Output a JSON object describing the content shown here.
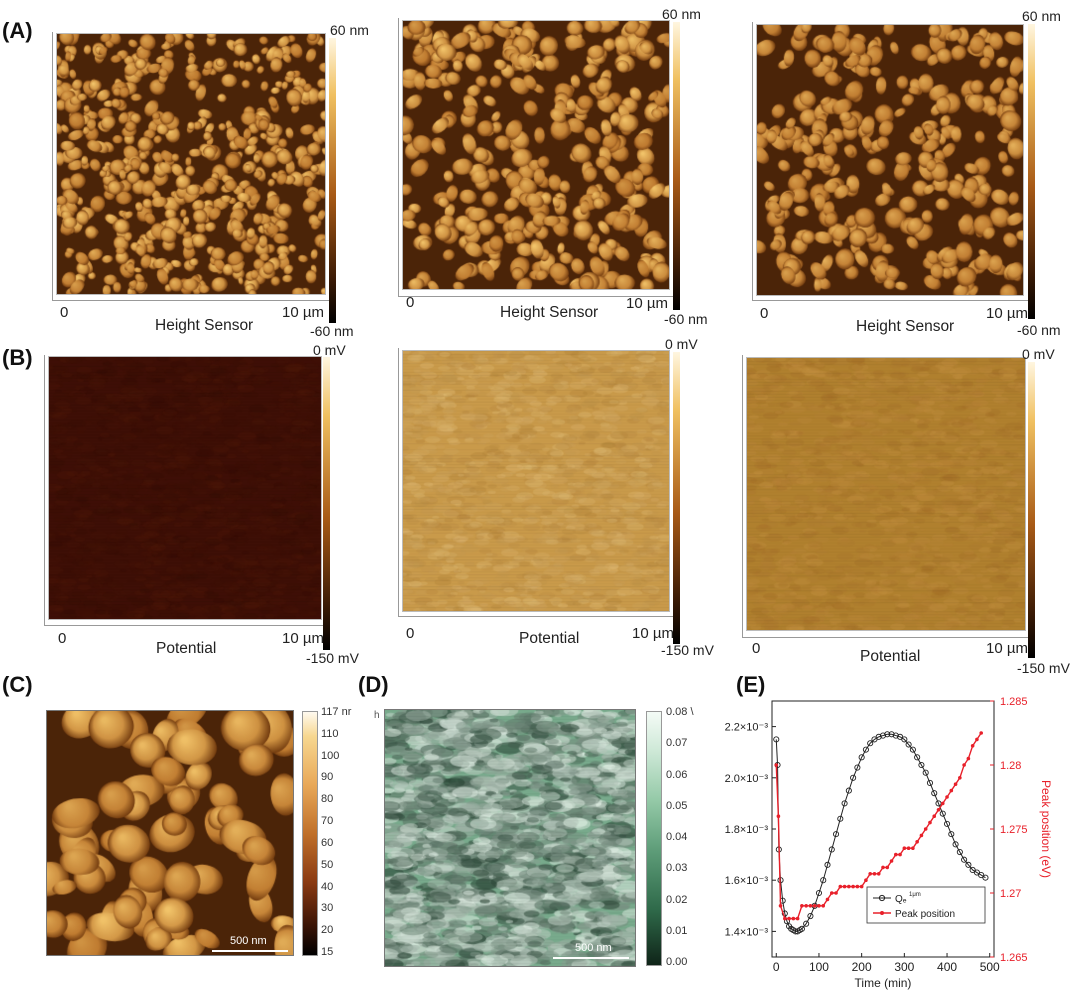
{
  "panels": {
    "A": {
      "letter": "(A)",
      "maps": [
        {
          "scale_min": "0",
          "scale_max": "10 µm",
          "caption": "Height Sensor",
          "cbar_top": "60 nm",
          "cbar_bottom": "-60 nm"
        },
        {
          "scale_min": "0",
          "scale_max": "10 µm",
          "caption": "Height Sensor",
          "cbar_top": "60 nm",
          "cbar_bottom": "-60 nm"
        },
        {
          "scale_min": "0",
          "scale_max": "10 µm",
          "caption": "Height Sensor",
          "cbar_top": "60 nm",
          "cbar_bottom": "-60 nm"
        }
      ]
    },
    "B": {
      "letter": "(B)",
      "maps": [
        {
          "scale_min": "0",
          "scale_max": "10 µm",
          "caption": "Potential",
          "cbar_top": "0 mV",
          "cbar_bottom": "-150 mV"
        },
        {
          "scale_min": "0",
          "scale_max": "10 µm",
          "caption": "Potential",
          "cbar_top": "0 mV",
          "cbar_bottom": "-150 mV"
        },
        {
          "scale_min": "0",
          "scale_max": "10 µm",
          "caption": "Potential",
          "cbar_top": "0 mV",
          "cbar_bottom": "-150 mV"
        }
      ]
    },
    "C": {
      "letter": "(C)",
      "scalebar": "500 nm",
      "cbar_ticks": [
        "117 nr",
        "110",
        "100",
        "90",
        "80",
        "70",
        "60",
        "50",
        "40",
        "30",
        "20",
        "15"
      ]
    },
    "D": {
      "letter": "(D)",
      "scalebar": "500 nm",
      "corner_mark": "h",
      "cbar_ticks": [
        "0.08 \\",
        "0.07",
        "0.06",
        "0.05",
        "0.04",
        "0.03",
        "0.02",
        "0.01",
        "0.00"
      ]
    },
    "E": {
      "letter": "(E)"
    }
  },
  "colors": {
    "afm_dark": "#3a1a05",
    "afm_mid": "#a85a16",
    "afm_light": "#f2c46a",
    "green_dark": "#1d3a2a",
    "green_mid": "#5d9c78",
    "green_light": "#e6f4ea",
    "peak_red": "#e8202a",
    "qe_black": "#222222"
  },
  "chart_data": {
    "type": "line",
    "title": "",
    "xlabel": "Time (min)",
    "ylabel_left": "",
    "ylabel_right": "Peak position (eV)",
    "xlim": [
      -10,
      510
    ],
    "xticks": [
      "0",
      "100",
      "200",
      "300",
      "400",
      "500"
    ],
    "ylim_left": [
      0.0013,
      0.0023
    ],
    "yticks_left": [
      "1.4×10⁻³",
      "1.6×10⁻³",
      "1.8×10⁻³",
      "2.0×10⁻³",
      "2.2×10⁻³"
    ],
    "yticks_left_values": [
      0.0014,
      0.0016,
      0.0018,
      0.002,
      0.0022
    ],
    "ylim_right": [
      1.265,
      1.285
    ],
    "yticks_right": [
      "1.265",
      "1.27",
      "1.275",
      "1.28",
      "1.285"
    ],
    "yticks_right_values": [
      1.265,
      1.27,
      1.275,
      1.28,
      1.285
    ],
    "legend": {
      "placement": "lower-right",
      "entries": [
        "Qₑ",
        "Peak position"
      ],
      "qe_superscript": "1μm"
    },
    "series": [
      {
        "name": "Qₑ",
        "axis": "left",
        "color": "#222222",
        "marker": "circle-open",
        "x": [
          0,
          3,
          6,
          10,
          15,
          20,
          25,
          30,
          35,
          40,
          45,
          50,
          55,
          60,
          70,
          80,
          90,
          100,
          110,
          120,
          130,
          140,
          150,
          160,
          170,
          180,
          190,
          200,
          210,
          220,
          230,
          240,
          250,
          260,
          270,
          280,
          290,
          300,
          310,
          320,
          330,
          340,
          350,
          360,
          370,
          380,
          390,
          400,
          410,
          420,
          430,
          440,
          450,
          460,
          470,
          480,
          490
        ],
        "values": [
          0.00215,
          0.00205,
          0.00172,
          0.0016,
          0.00152,
          0.00147,
          0.00144,
          0.00142,
          0.00141,
          0.001405,
          0.0014,
          0.0014,
          0.001405,
          0.00141,
          0.00143,
          0.00146,
          0.0015,
          0.00155,
          0.0016,
          0.00166,
          0.00172,
          0.00178,
          0.00184,
          0.0019,
          0.00195,
          0.002,
          0.00204,
          0.00208,
          0.00211,
          0.002135,
          0.00215,
          0.00216,
          0.002165,
          0.00217,
          0.00217,
          0.002165,
          0.00216,
          0.00215,
          0.00213,
          0.00211,
          0.00208,
          0.00205,
          0.00202,
          0.00198,
          0.00194,
          0.0019,
          0.00186,
          0.00182,
          0.00178,
          0.00174,
          0.00171,
          0.00168,
          0.00166,
          0.00164,
          0.00163,
          0.00162,
          0.00161
        ]
      },
      {
        "name": "Peak position",
        "axis": "right",
        "color": "#e8202a",
        "marker": "dot",
        "x": [
          0,
          5,
          10,
          20,
          30,
          40,
          50,
          60,
          70,
          80,
          90,
          100,
          110,
          120,
          130,
          140,
          150,
          160,
          170,
          180,
          190,
          200,
          210,
          220,
          230,
          240,
          250,
          260,
          270,
          280,
          290,
          300,
          310,
          320,
          330,
          340,
          350,
          360,
          370,
          380,
          390,
          400,
          410,
          420,
          430,
          440,
          450,
          460,
          470,
          480
        ],
        "values": [
          1.28,
          1.276,
          1.269,
          1.268,
          1.268,
          1.268,
          1.268,
          1.269,
          1.269,
          1.269,
          1.269,
          1.269,
          1.269,
          1.2695,
          1.27,
          1.27,
          1.2705,
          1.2705,
          1.2705,
          1.2705,
          1.2705,
          1.2705,
          1.271,
          1.2715,
          1.2715,
          1.2715,
          1.272,
          1.272,
          1.2725,
          1.273,
          1.273,
          1.2735,
          1.2735,
          1.2735,
          1.274,
          1.2745,
          1.275,
          1.2755,
          1.276,
          1.2765,
          1.277,
          1.2775,
          1.278,
          1.2785,
          1.279,
          1.28,
          1.2805,
          1.2815,
          1.282,
          1.2825
        ]
      }
    ]
  }
}
